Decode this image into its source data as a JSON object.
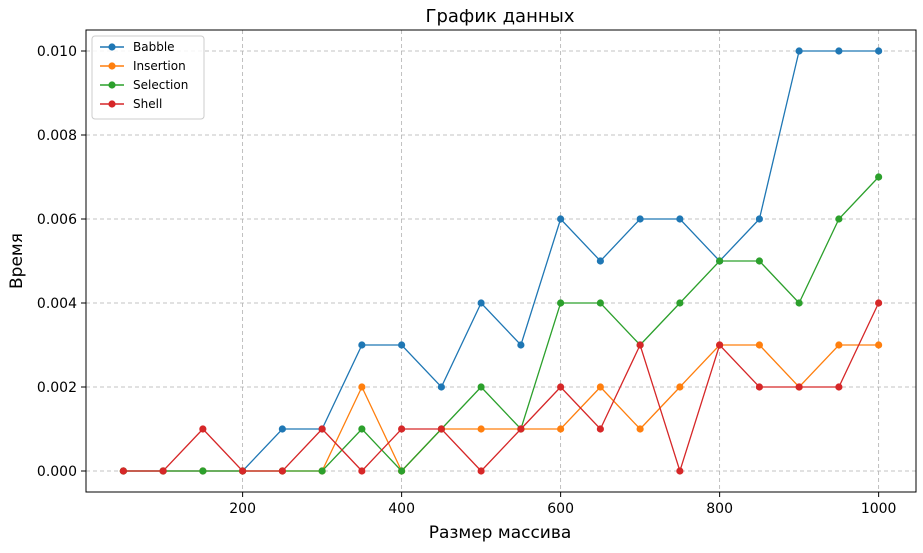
{
  "chart_data": {
    "type": "line",
    "title": "График данных",
    "xlabel": "Размер массива",
    "ylabel": "Время",
    "xlim": [
      3,
      1047
    ],
    "ylim": [
      -0.0005,
      0.0105
    ],
    "xticks": [
      200,
      400,
      600,
      800,
      1000
    ],
    "xtick_labels": [
      "200",
      "400",
      "600",
      "800",
      "1000"
    ],
    "yticks": [
      0.0,
      0.002,
      0.004,
      0.006,
      0.008,
      0.01
    ],
    "ytick_labels": [
      "0.000",
      "0.002",
      "0.004",
      "0.006",
      "0.008",
      "0.010"
    ],
    "grid": true,
    "legend_position": "top-left",
    "x": [
      50,
      100,
      150,
      200,
      250,
      300,
      350,
      400,
      450,
      500,
      550,
      600,
      650,
      700,
      750,
      800,
      850,
      900,
      950,
      1000
    ],
    "series": [
      {
        "name": "Babble",
        "color": "#1f77b4",
        "values": [
          0,
          0,
          0,
          0,
          0.001,
          0.001,
          0.003,
          0.003,
          0.002,
          0.004,
          0.003,
          0.006,
          0.005,
          0.006,
          0.006,
          0.005,
          0.006,
          0.01,
          0.01,
          0.01
        ]
      },
      {
        "name": "Insertion",
        "color": "#ff7f0e",
        "values": [
          0,
          0,
          0,
          0,
          0,
          0,
          0.002,
          0,
          0.001,
          0.001,
          0.001,
          0.001,
          0.002,
          0.001,
          0.002,
          0.003,
          0.003,
          0.002,
          0.003,
          0.003
        ]
      },
      {
        "name": "Selection",
        "color": "#2ca02c",
        "values": [
          0,
          0,
          0,
          0,
          0,
          0,
          0.001,
          0,
          0.001,
          0.002,
          0.001,
          0.004,
          0.004,
          0.003,
          0.004,
          0.005,
          0.005,
          0.004,
          0.006,
          0.007
        ]
      },
      {
        "name": "Shell",
        "color": "#d62728",
        "values": [
          0,
          0,
          0.001,
          0,
          0,
          0.001,
          0,
          0.001,
          0.001,
          0,
          0.001,
          0.002,
          0.001,
          0.003,
          0,
          0.003,
          0.002,
          0.002,
          0.002,
          0.004
        ]
      }
    ]
  }
}
